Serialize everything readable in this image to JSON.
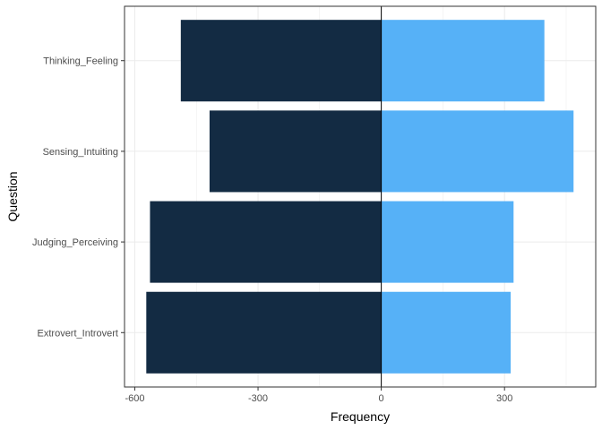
{
  "chart_data": {
    "type": "bar",
    "orientation": "horizontal",
    "stacking": "diverging",
    "xlabel": "Frequency",
    "ylabel": "Question",
    "xlim": [
      -625,
      522
    ],
    "x_ticks": [
      -600,
      -300,
      0,
      300
    ],
    "x_tick_labels": [
      "-600",
      "-300",
      "0",
      "300"
    ],
    "categories": [
      "Extrovert_Introvert",
      "Judging_Perceiving",
      "Sensing_Intuiting",
      "Thinking_Feeling"
    ],
    "series": [
      {
        "values": [
          -572,
          -563,
          -418,
          -488
        ],
        "color": "#132b43"
      },
      {
        "values": [
          315,
          322,
          468,
          397
        ],
        "color": "#56b1f7"
      }
    ],
    "grid": true,
    "legend": "none",
    "zero_line": true
  }
}
